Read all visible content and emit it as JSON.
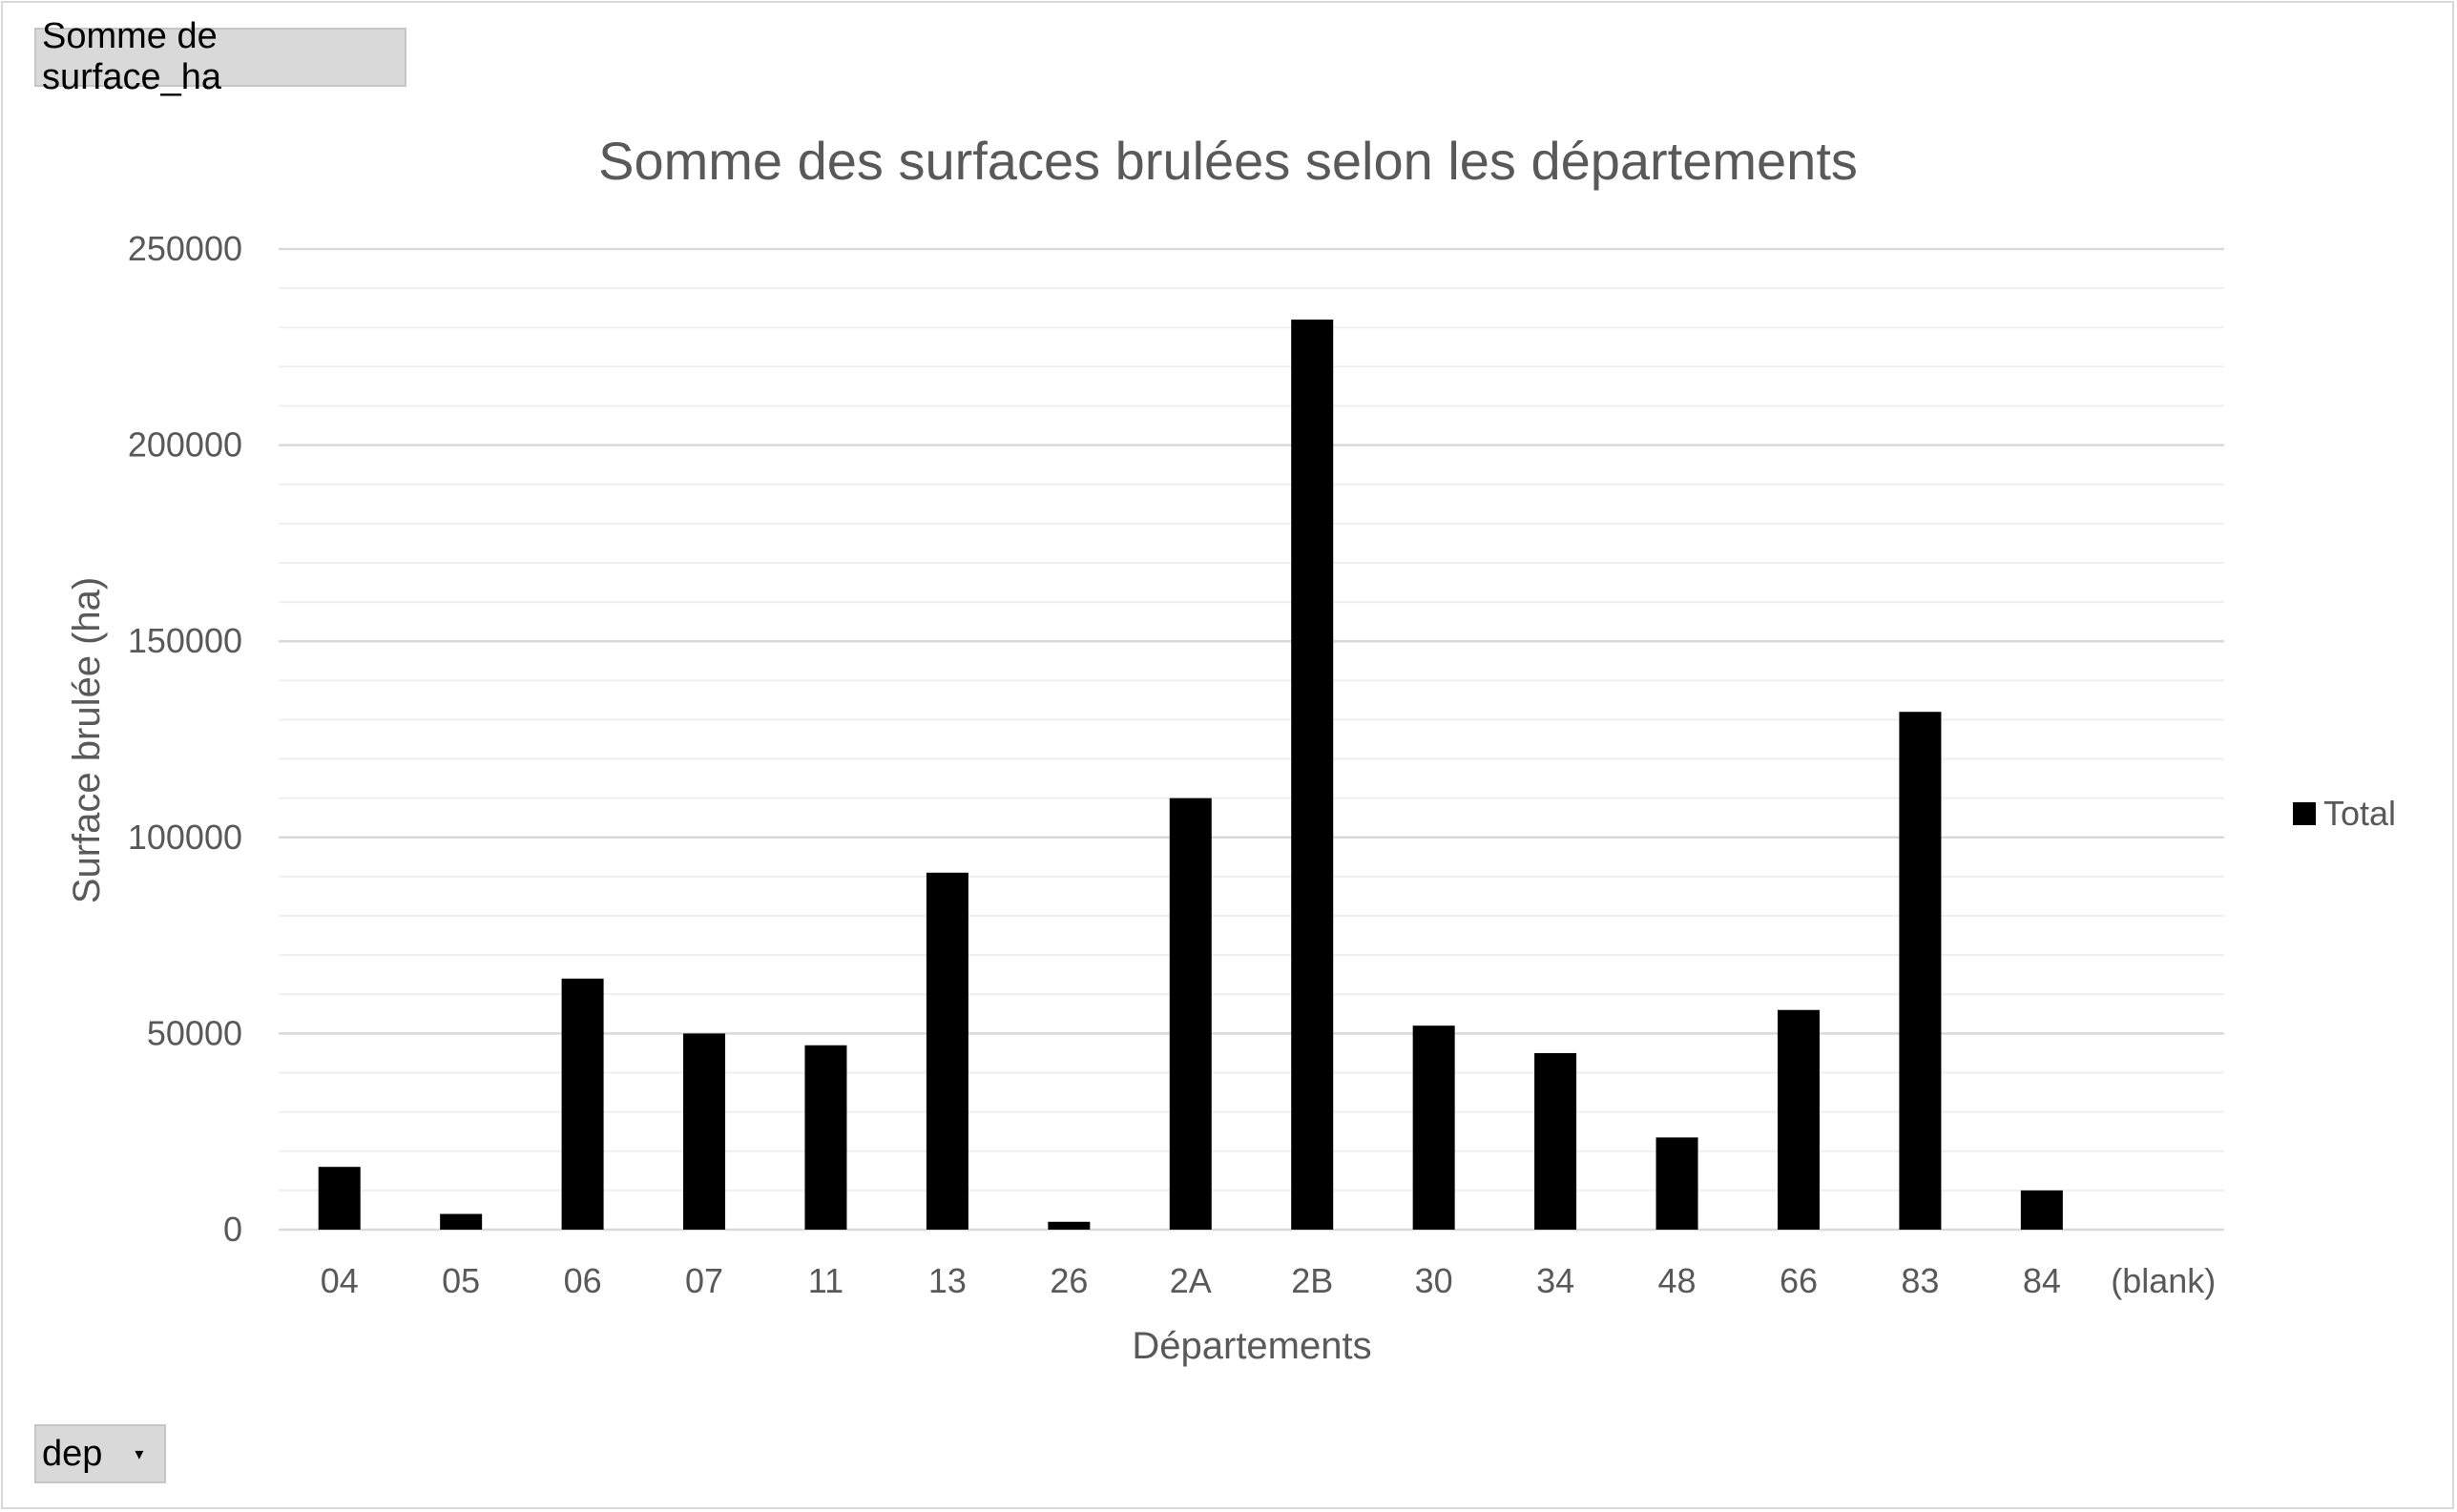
{
  "pivot_buttons": {
    "value_field": "Somme de surface_ha",
    "axis_field": "dep",
    "axis_field_dropdown_icon": "dropdown-arrow-icon"
  },
  "chart_data": {
    "type": "bar",
    "title": "Somme des surfaces brulées selon les départements",
    "xlabel": "Départements",
    "ylabel": "Surface brulée (ha)",
    "categories": [
      "04",
      "05",
      "06",
      "07",
      "11",
      "13",
      "26",
      "2A",
      "2B",
      "30",
      "34",
      "48",
      "66",
      "83",
      "84",
      "(blank)"
    ],
    "series": [
      {
        "name": "Total",
        "values": [
          16000,
          4000,
          64000,
          50000,
          47000,
          91000,
          2000,
          110000,
          232000,
          52000,
          45000,
          23500,
          56000,
          132000,
          10000,
          null
        ]
      }
    ],
    "ylim": [
      0,
      250000
    ],
    "yticks": [
      0,
      50000,
      100000,
      150000,
      200000,
      250000
    ],
    "minor_step": 10000,
    "grid": true,
    "legend_position": "right",
    "bar_color": "#000000",
    "grid_color": "#d9d9d9",
    "minor_grid_color": "#efefef",
    "text_color": "#595959"
  }
}
